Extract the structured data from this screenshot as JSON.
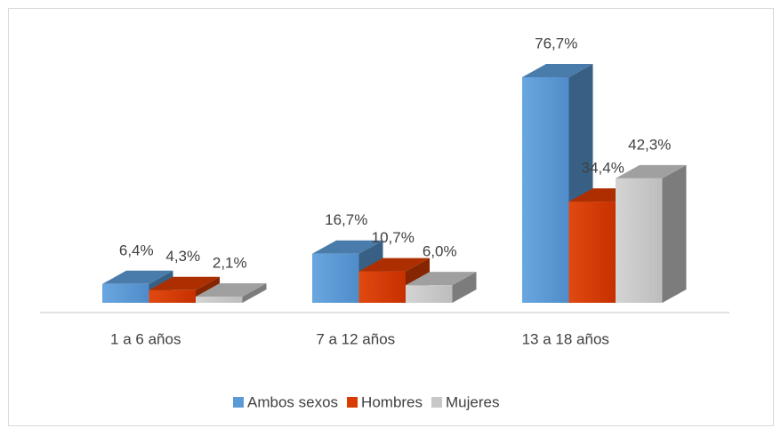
{
  "chart_data": {
    "type": "bar3d",
    "categories": [
      "1 a 6 años",
      "7 a 12 años",
      "13 a 18 años"
    ],
    "series": [
      {
        "name": "Ambos sexos",
        "color": "#5b9bd5",
        "values": [
          6.4,
          16.7,
          76.7
        ],
        "value_labels": [
          "6,4%",
          "16,7%",
          "76,7%"
        ]
      },
      {
        "name": "Hombres",
        "color": "#d83b01",
        "values": [
          4.3,
          10.7,
          34.4
        ],
        "value_labels": [
          "4,3%",
          "10,7%",
          "34,4%"
        ]
      },
      {
        "name": "Mujeres",
        "color": "#c8c8c8",
        "values": [
          2.1,
          6.0,
          42.3
        ],
        "value_labels": [
          "2,1%",
          "6,0%",
          "42,3%"
        ]
      }
    ],
    "legend": "bottom"
  }
}
